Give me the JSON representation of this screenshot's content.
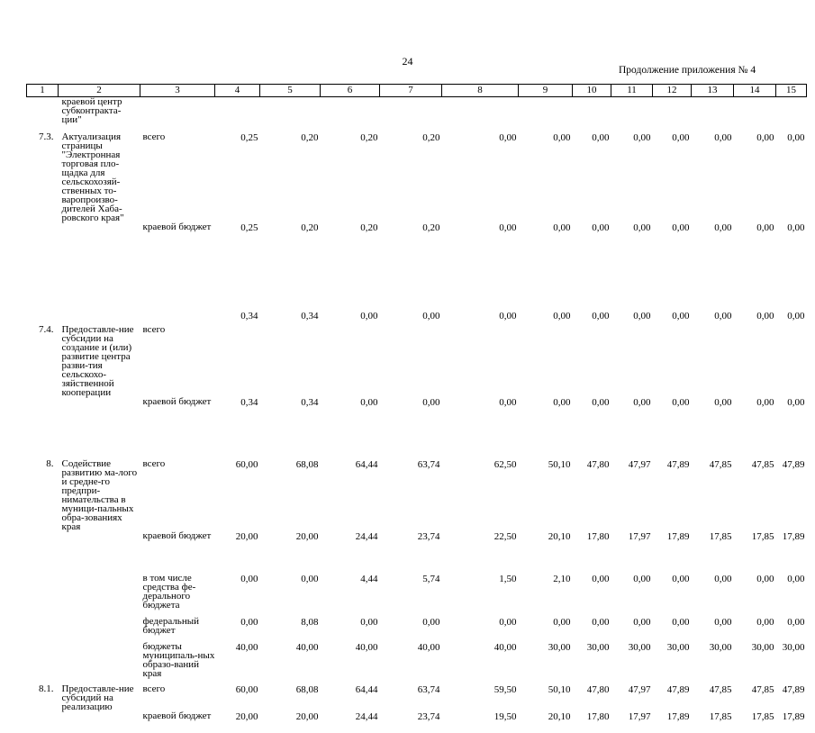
{
  "page_number": "24",
  "appendix_label": "Продолжение приложения № 4",
  "columns": [
    "1",
    "2",
    "3",
    "4",
    "5",
    "6",
    "7",
    "8",
    "9",
    "10",
    "11",
    "12",
    "13",
    "14",
    "15"
  ],
  "rows": [
    {
      "idx": "",
      "name": "краевой центр субконтракта-ции\"",
      "src": "",
      "vals": [
        "",
        "",
        "",
        "",
        "",
        "",
        "",
        "",
        "",
        "",
        "",
        ""
      ]
    },
    {
      "idx": "7.3.",
      "name": "Актуализация страницы \"Электронная торговая пло-щадка для сельскохозяй-ственных то-варопроизво-дителей Хаба-ровского края\"",
      "src": "всего",
      "vals": [
        "0,25",
        "0,20",
        "0,20",
        "0,20",
        "0,00",
        "0,00",
        "0,00",
        "0,00",
        "0,00",
        "0,00",
        "0,00",
        "0,00"
      ]
    },
    {
      "idx": "",
      "name": "",
      "src": "краевой бюджет",
      "vals": [
        "0,25",
        "0,20",
        "0,20",
        "0,20",
        "0,00",
        "0,00",
        "0,00",
        "0,00",
        "0,00",
        "0,00",
        "0,00",
        "0,00"
      ]
    },
    {
      "idx": "",
      "name": "",
      "src": "",
      "vals": [
        "0,34",
        "0,34",
        "0,00",
        "0,00",
        "0,00",
        "0,00",
        "0,00",
        "0,00",
        "0,00",
        "0,00",
        "0,00",
        "0,00"
      ]
    },
    {
      "idx": "7.4.",
      "name": "Предоставле-ние субсидии на создание и (или) развитие центра разви-тия сельскохо-зяйственной кооперации",
      "src": "всего",
      "vals": [
        "",
        "",
        "",
        "",
        "",
        "",
        "",
        "",
        "",
        "",
        "",
        ""
      ]
    },
    {
      "idx": "",
      "name": "",
      "src": "краевой бюджет",
      "vals": [
        "0,34",
        "0,34",
        "0,00",
        "0,00",
        "0,00",
        "0,00",
        "0,00",
        "0,00",
        "0,00",
        "0,00",
        "0,00",
        "0,00"
      ]
    },
    {
      "idx": "8.",
      "name": "Содействие развитию ма-лого и средне-го предпри-нимательства в муници-пальных обра-зованиях края",
      "src": "всего",
      "vals": [
        "60,00",
        "68,08",
        "64,44",
        "63,74",
        "62,50",
        "50,10",
        "47,80",
        "47,97",
        "47,89",
        "47,85",
        "47,85",
        "47,89"
      ]
    },
    {
      "idx": "",
      "name": "",
      "src": "краевой бюджет",
      "vals": [
        "20,00",
        "20,00",
        "24,44",
        "23,74",
        "22,50",
        "20,10",
        "17,80",
        "17,97",
        "17,89",
        "17,85",
        "17,85",
        "17,89"
      ]
    },
    {
      "idx": "",
      "name": "",
      "src": "в том числе средства фе-дерального бюджета",
      "vals": [
        "0,00",
        "0,00",
        "4,44",
        "5,74",
        "1,50",
        "2,10",
        "0,00",
        "0,00",
        "0,00",
        "0,00",
        "0,00",
        "0,00"
      ]
    },
    {
      "idx": "",
      "name": "",
      "src": "федеральный бюджет",
      "vals": [
        "0,00",
        "8,08",
        "0,00",
        "0,00",
        "0,00",
        "0,00",
        "0,00",
        "0,00",
        "0,00",
        "0,00",
        "0,00",
        "0,00"
      ]
    },
    {
      "idx": "",
      "name": "",
      "src": "бюджеты муниципаль-ных образо-ваний края",
      "vals": [
        "40,00",
        "40,00",
        "40,00",
        "40,00",
        "40,00",
        "30,00",
        "30,00",
        "30,00",
        "30,00",
        "30,00",
        "30,00",
        "30,00"
      ]
    },
    {
      "idx": "8.1.",
      "name": "Предоставле-ние субсидий на реализацию",
      "src": "всего",
      "vals": [
        "60,00",
        "68,08",
        "64,44",
        "63,74",
        "59,50",
        "50,10",
        "47,80",
        "47,97",
        "47,89",
        "47,85",
        "47,85",
        "47,89"
      ]
    },
    {
      "idx": "",
      "name": "",
      "src": "краевой бюджет",
      "vals": [
        "20,00",
        "20,00",
        "24,44",
        "23,74",
        "19,50",
        "20,10",
        "17,80",
        "17,97",
        "17,89",
        "17,85",
        "17,85",
        "17,89"
      ]
    }
  ]
}
